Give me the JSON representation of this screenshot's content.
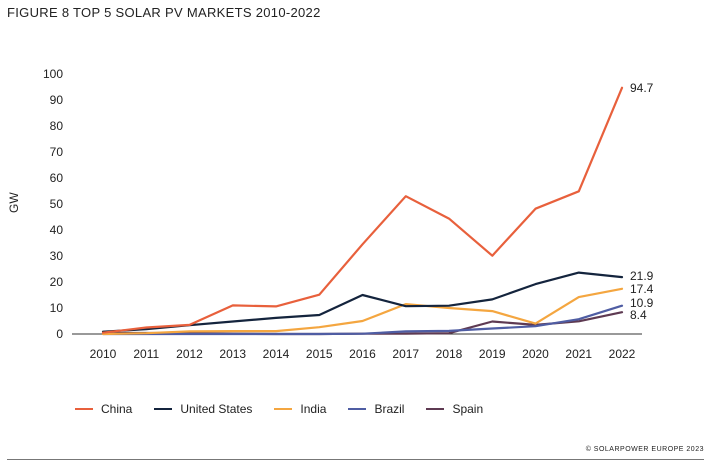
{
  "figure": {
    "title": "FIGURE 8 TOP 5 SOLAR PV MARKETS 2010-2022",
    "credit": "© SOLARPOWER EUROPE 2023"
  },
  "chart_data": {
    "type": "line",
    "title": "FIGURE 8 TOP 5 SOLAR PV MARKETS 2010-2022",
    "xlabel": "",
    "ylabel": "GW",
    "x": [
      "2010",
      "2011",
      "2012",
      "2013",
      "2014",
      "2015",
      "2016",
      "2017",
      "2018",
      "2019",
      "2020",
      "2021",
      "2022"
    ],
    "ylim": [
      0,
      100
    ],
    "yticks": [
      0,
      10,
      20,
      30,
      40,
      50,
      60,
      70,
      80,
      90,
      100
    ],
    "grid": false,
    "legend_position": "bottom",
    "series": [
      {
        "name": "China",
        "color": "#E8603C",
        "values": [
          0.5,
          2.5,
          3.5,
          11.0,
          10.6,
          15.1,
          34.5,
          53.0,
          44.4,
          30.1,
          48.2,
          54.9,
          94.7
        ],
        "end_label": "94.7"
      },
      {
        "name": "United States",
        "color": "#14243D",
        "values": [
          0.9,
          1.9,
          3.4,
          4.8,
          6.2,
          7.3,
          15.0,
          10.7,
          10.9,
          13.3,
          19.2,
          23.6,
          21.9
        ],
        "end_label": "21.9"
      },
      {
        "name": "India",
        "color": "#F4A640",
        "values": [
          0.0,
          0.3,
          1.0,
          1.1,
          1.1,
          2.6,
          5.0,
          11.5,
          10.0,
          8.8,
          4.0,
          14.2,
          17.4
        ],
        "end_label": "17.4"
      },
      {
        "name": "Brazil",
        "color": "#4F5DA3",
        "values": [
          0.0,
          0.0,
          0.0,
          0.0,
          0.0,
          0.0,
          0.1,
          1.0,
          1.2,
          2.1,
          3.0,
          5.7,
          10.9
        ],
        "end_label": "10.9"
      },
      {
        "name": "Spain",
        "color": "#5E3A52",
        "values": [
          0.4,
          0.4,
          0.3,
          0.1,
          0.0,
          0.0,
          0.1,
          0.1,
          0.3,
          4.8,
          3.5,
          4.9,
          8.4
        ],
        "end_label": "8.4"
      }
    ]
  }
}
